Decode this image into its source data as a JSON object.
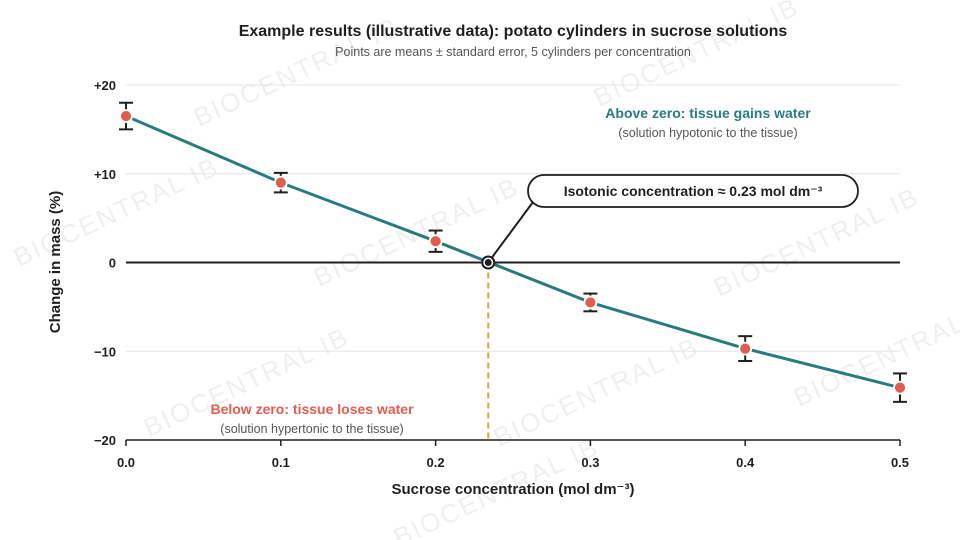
{
  "watermark": "BIOCENTRAL IB",
  "colors": {
    "line": "#2a7b80",
    "point": "#df5e4f",
    "isotonic_guide": "#e0a33a",
    "zero_line": "#1f1f1f",
    "grid": "#e2e6ea",
    "gain_text": "#2a7b80",
    "lose_text": "#df5e4f"
  },
  "annotations": {
    "above_title": "Above zero: tissue gains water",
    "above_sub": "(solution hypotonic to the tissue)",
    "below_title": "Below zero: tissue loses water",
    "below_sub": "(solution hypertonic to the tissue)",
    "callout": "Isotonic concentration ≈ 0.23 mol dm⁻³"
  },
  "chart_data": {
    "type": "line",
    "title": "Example results (illustrative data): potato cylinders in sucrose solutions",
    "subtitle": "Points are means ± standard error, 5 cylinders per concentration",
    "xlabel": "Sucrose concentration (mol dm⁻³)",
    "ylabel": "Change in mass (%)",
    "xlim": [
      0.0,
      0.5
    ],
    "ylim": [
      -20,
      20
    ],
    "x_ticks": [
      "0.0",
      "0.1",
      "0.2",
      "0.3",
      "0.4",
      "0.5"
    ],
    "x_tick_values": [
      0.0,
      0.1,
      0.2,
      0.3,
      0.4,
      0.5
    ],
    "y_ticks": [
      "+20",
      "+10",
      "0",
      "−10",
      "−20"
    ],
    "y_tick_values": [
      20,
      10,
      0,
      -10,
      -20
    ],
    "grid": true,
    "series": [
      {
        "x": [
          0.0,
          0.1,
          0.2,
          0.3,
          0.4,
          0.5
        ],
        "y": [
          16.5,
          9.0,
          2.4,
          -4.5,
          -9.7,
          -14.1
        ],
        "error": [
          1.5,
          1.1,
          1.2,
          1.0,
          1.4,
          1.6
        ]
      }
    ],
    "isotonic_x": 0.234
  }
}
